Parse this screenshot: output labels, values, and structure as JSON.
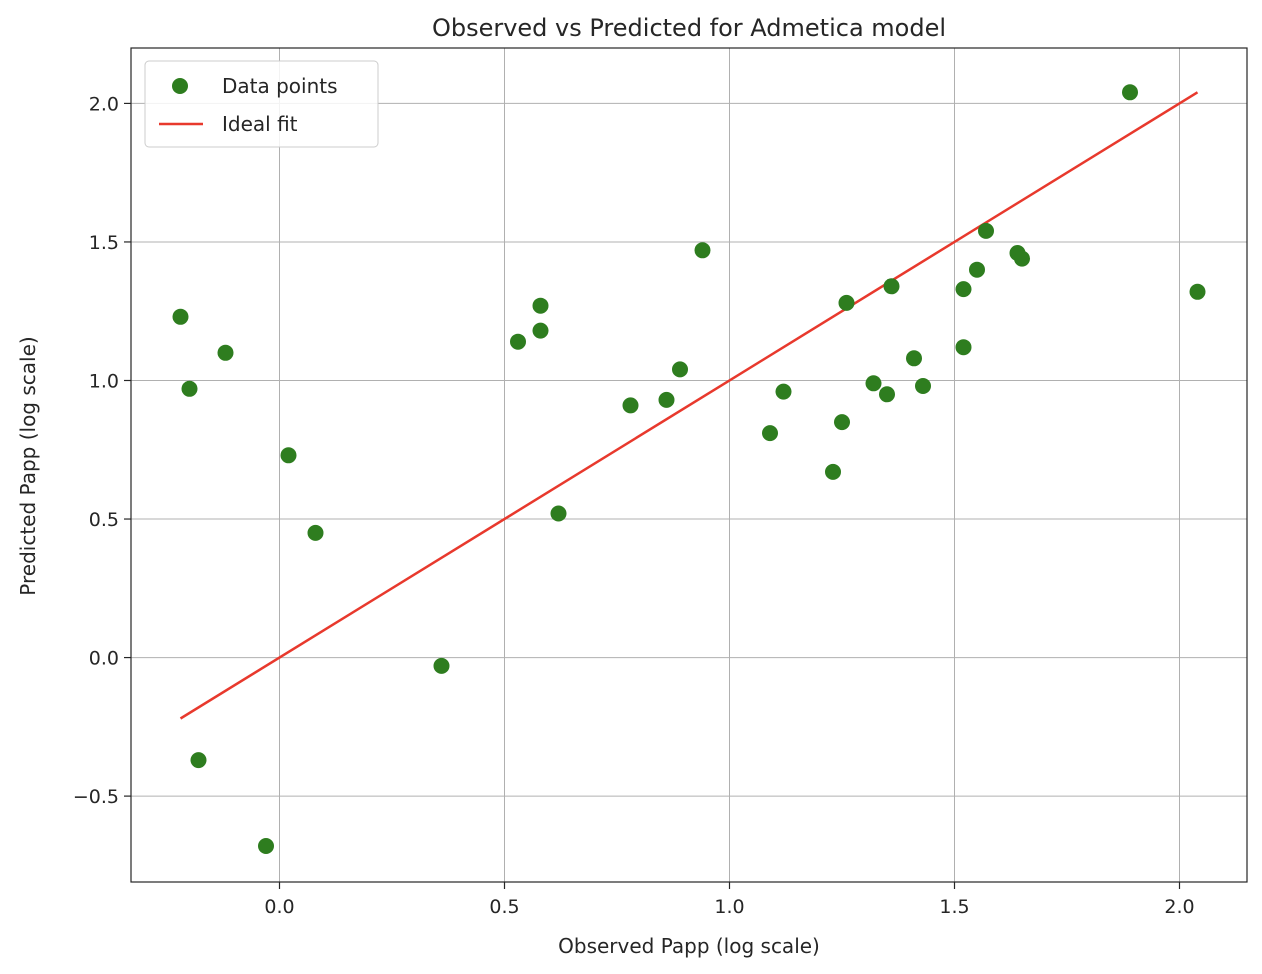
{
  "chart_data": {
    "type": "scatter",
    "title": "Observed vs Predicted for Admetica model",
    "xlabel": "Observed Papp (log scale)",
    "ylabel": "Predicted Papp (log scale)",
    "xlim": [
      -0.33,
      2.15
    ],
    "ylim": [
      -0.81,
      2.2
    ],
    "x_ticks": [
      0.0,
      0.5,
      1.0,
      1.5,
      2.0
    ],
    "x_tick_labels": [
      "0.0",
      "0.5",
      "1.0",
      "1.5",
      "2.0"
    ],
    "y_ticks": [
      -0.5,
      0.0,
      0.5,
      1.0,
      1.5,
      2.0
    ],
    "y_tick_labels": [
      "−0.5",
      "0.0",
      "0.5",
      "1.0",
      "1.5",
      "2.0"
    ],
    "grid": true,
    "legend_position": "top-left",
    "series": [
      {
        "name": "Data points",
        "kind": "scatter",
        "color": "#2e7d1f",
        "points": [
          [
            -0.22,
            1.23
          ],
          [
            -0.2,
            0.97
          ],
          [
            -0.18,
            -0.37
          ],
          [
            -0.12,
            1.1
          ],
          [
            -0.03,
            -0.68
          ],
          [
            0.02,
            0.73
          ],
          [
            0.08,
            0.45
          ],
          [
            0.36,
            -0.03
          ],
          [
            0.53,
            1.14
          ],
          [
            0.58,
            1.27
          ],
          [
            0.58,
            1.18
          ],
          [
            0.62,
            0.52
          ],
          [
            0.78,
            0.91
          ],
          [
            0.86,
            0.93
          ],
          [
            0.89,
            1.04
          ],
          [
            0.94,
            1.47
          ],
          [
            1.09,
            0.81
          ],
          [
            1.12,
            0.96
          ],
          [
            1.23,
            0.67
          ],
          [
            1.25,
            0.85
          ],
          [
            1.26,
            1.28
          ],
          [
            1.32,
            0.99
          ],
          [
            1.35,
            0.95
          ],
          [
            1.36,
            1.34
          ],
          [
            1.41,
            1.08
          ],
          [
            1.43,
            0.98
          ],
          [
            1.52,
            1.33
          ],
          [
            1.52,
            1.12
          ],
          [
            1.55,
            1.4
          ],
          [
            1.57,
            1.54
          ],
          [
            1.64,
            1.46
          ],
          [
            1.65,
            1.44
          ],
          [
            1.89,
            2.04
          ],
          [
            2.04,
            1.32
          ]
        ]
      },
      {
        "name": "Ideal fit",
        "kind": "line",
        "color": "#e8392d",
        "points": [
          [
            -0.22,
            -0.22
          ],
          [
            2.04,
            2.04
          ]
        ]
      }
    ]
  }
}
